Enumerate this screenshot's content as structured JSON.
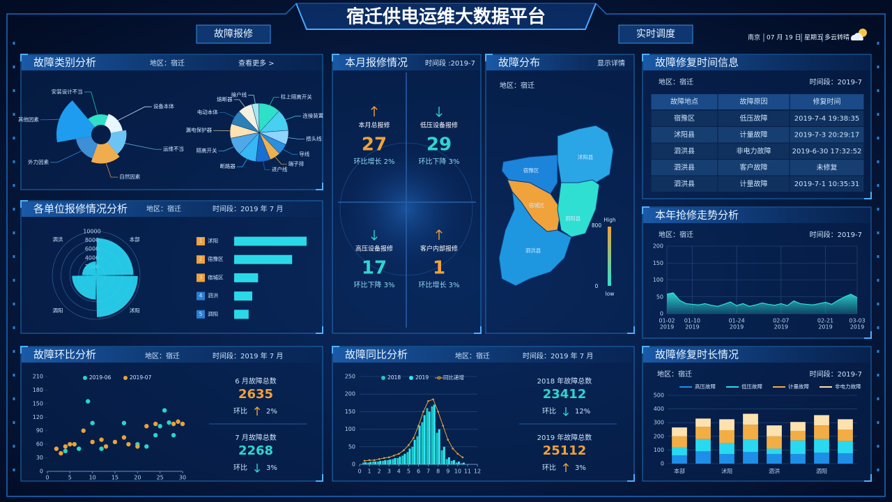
{
  "header": {
    "title": "宿迁供电运维大数据平台",
    "left_button": "故障报修",
    "right_button": "实时调度",
    "city": "南京",
    "date": "07 月 19 日",
    "weekday": "星期五",
    "weather": "多云转晴"
  },
  "fault_category": {
    "title": "故障类别分析",
    "region": "地区：宿迁",
    "more": "查看更多 >"
  },
  "monthly": {
    "title": "本月报修情况",
    "period": "时间段 :2019-7",
    "stats": [
      {
        "label": "本月总报修",
        "value": 27,
        "change": "环比增长 2%",
        "trend": "up"
      },
      {
        "label": "低压设备报修",
        "value": 29,
        "change": "环比下降 3%",
        "trend": "down"
      },
      {
        "label": "高压设备报修",
        "value": 17,
        "change": "环比下降 3%",
        "trend": "down"
      },
      {
        "label": "客户内部报修",
        "value": 1,
        "change": "环比增长 3%",
        "trend": "up"
      }
    ]
  },
  "distribution": {
    "title": "故障分布",
    "detail": "显示详情",
    "region": "地区：宿迁",
    "areas": [
      {
        "name": "沭阳县",
        "color": "#2aa6e6"
      },
      {
        "name": "宿豫区",
        "color": "#1d84dc"
      },
      {
        "name": "宿城区",
        "color": "#f0a23b"
      },
      {
        "name": "泗阳县",
        "color": "#2fe0d2"
      },
      {
        "name": "泗洪县",
        "color": "#1e97e0"
      }
    ],
    "legend": {
      "high": "High",
      "low": "low",
      "max": 800,
      "min": 0
    }
  },
  "repair_time": {
    "title": "故障修复时间信息",
    "region": "地区：宿迁",
    "period": "时间段：2019-7",
    "highlight_row": 3,
    "table": {
      "header": [
        "故障地点",
        "故障原因",
        "修复时间"
      ],
      "rows": [
        [
          "宿豫区",
          "低压故障",
          "2019-7-4 19:38:35"
        ],
        [
          "沭阳县",
          "计量故障",
          "2019-7-3 20:29:17"
        ],
        [
          "泗洪县",
          "非电力故障",
          "2019-6-30 17:32:52"
        ],
        [
          "泗洪县",
          "客户故障",
          "未修复"
        ],
        [
          "泗洪县",
          "计量故障",
          "2019-7-1 10:35:31"
        ]
      ]
    }
  },
  "unit_repair": {
    "title": "各单位报修情况分析",
    "region": "地区：宿迁",
    "period": "时间段：2019 年 7 月"
  },
  "trend": {
    "title": "本年抢修走势分析",
    "region": "地区：宿迁",
    "period": "时间段：2019-7"
  },
  "mom": {
    "title": "故障环比分析",
    "region": "地区：宿迁",
    "period": "时间段：2019 年 7 月",
    "summary": [
      {
        "label": "6 月故障总数",
        "value": 2635,
        "change_label": "环比",
        "change": "2%",
        "trend": "up"
      },
      {
        "label": "7 月故障总数",
        "value": 2268,
        "change_label": "环比",
        "change": "3%",
        "trend": "down"
      }
    ]
  },
  "yoy": {
    "title": "故障同比分析",
    "region": "地区：宿迁",
    "period": "时间段：2019 年 7 月",
    "summary": [
      {
        "label": "2018 年故障总数",
        "value": 23412,
        "change_label": "环比",
        "change": "12%",
        "trend": "down"
      },
      {
        "label": "2019 年故障总数",
        "value": 25112,
        "change_label": "环比",
        "change": "3%",
        "trend": "up"
      }
    ]
  },
  "repair_duration": {
    "title": "故障修复时长情况",
    "region": "地区：宿迁",
    "period": "时间段：2019-7"
  },
  "chart_data": [
    {
      "type": "rose",
      "categories": [
        "其他因素",
        "安装设计不当",
        "设备本体",
        "运维不当",
        "自然因素",
        "外力因素"
      ],
      "values": [
        100,
        30,
        35,
        45,
        55,
        45
      ],
      "colors": [
        "#1e9cf0",
        "#2fe0c8",
        "#e8f6ff",
        "#6cc4f5",
        "#f0ad4e",
        "#3d8fd6"
      ]
    },
    {
      "type": "pie",
      "categories": [
        "接户线",
        "柱上隔离开关",
        "连接装置",
        "搭头线",
        "导线",
        "端子排",
        "进户线",
        "断路器",
        "隔离开关",
        "漏电保护器",
        "电动本体",
        "熔断器"
      ],
      "values": [
        4,
        12,
        12,
        8,
        6,
        6,
        8,
        10,
        10,
        8,
        8,
        8
      ],
      "colors": [
        "#9fe8f0",
        "#2fe0c8",
        "#48d0f0",
        "#8fd4ff",
        "#2a8fe0",
        "#f0b04e",
        "#1a6fd0",
        "#36b8f5",
        "#4fa8e8",
        "#ffe2b0",
        "#2c7fb8",
        "#f6f0e0"
      ]
    },
    {
      "type": "polar_bar",
      "categories": [
        "本部",
        "沭阳",
        "泗阳",
        "泗洪"
      ],
      "values": [
        8500,
        9500,
        5500,
        3200
      ],
      "color": "#2ad9f5",
      "rlim": [
        0,
        10000
      ],
      "rticks": [
        2000,
        4000,
        6000,
        8000,
        10000
      ]
    },
    {
      "type": "hbar",
      "ranks": [
        1,
        2,
        3,
        4,
        5
      ],
      "categories": [
        "沭阳",
        "宿豫区",
        "宿城区",
        "泗洪",
        "泗阳"
      ],
      "values": [
        100,
        80,
        33,
        25,
        20
      ],
      "xlim": [
        0,
        100
      ],
      "color": "#2ad9e8",
      "highlight_top": 3
    },
    {
      "type": "area",
      "x": [
        "2019-01-02",
        "2019-01-04",
        "2019-01-06",
        "2019-01-08",
        "2019-01-10",
        "2019-01-12",
        "2019-01-14",
        "2019-01-16",
        "2019-01-18",
        "2019-01-20",
        "2019-01-22",
        "2019-01-24",
        "2019-01-26",
        "2019-01-28",
        "2019-01-30",
        "2019-02-01",
        "2019-02-03",
        "2019-02-05",
        "2019-02-07",
        "2019-02-09",
        "2019-02-11",
        "2019-02-13",
        "2019-02-15",
        "2019-02-17",
        "2019-02-19",
        "2019-02-21",
        "2019-02-23",
        "2019-02-25",
        "2019-02-27",
        "2019-03-01",
        "2019-03-03"
      ],
      "values": [
        58,
        62,
        40,
        30,
        28,
        26,
        30,
        25,
        22,
        28,
        35,
        24,
        30,
        22,
        26,
        32,
        28,
        25,
        30,
        24,
        38,
        30,
        28,
        26,
        30,
        34,
        28,
        40,
        50,
        58,
        48
      ],
      "color": "#2fe0d8",
      "ylim": [
        0,
        200
      ],
      "yticks": [
        0,
        50,
        100,
        150,
        200
      ],
      "grid": true,
      "xticks": [
        {
          "value": "2019-01-02",
          "label": "01-02",
          "sublabel": "2019"
        },
        {
          "value": "2019-01-10",
          "label": "01-10",
          "sublabel": "2019"
        },
        {
          "value": "2019-01-24",
          "label": "01-24",
          "sublabel": "2019"
        },
        {
          "value": "2019-02-07",
          "label": "02-07",
          "sublabel": "2019"
        },
        {
          "value": "2019-02-21",
          "label": "02-21",
          "sublabel": "2019"
        },
        {
          "value": "2019-03-03",
          "label": "03-03",
          "sublabel": "2019"
        }
      ]
    },
    {
      "type": "scatter",
      "xlim": [
        0,
        30
      ],
      "xticks": [
        0,
        5,
        10,
        15,
        20,
        25,
        30
      ],
      "ylim": [
        0,
        210
      ],
      "yticks": [
        0,
        30,
        60,
        90,
        120,
        150,
        180,
        210
      ],
      "series": [
        {
          "name": "2019-06",
          "color": "#2ad4c8",
          "x": [
            4,
            7,
            9,
            10,
            12,
            17,
            20,
            22,
            24,
            25,
            26,
            27,
            28
          ],
          "values": [
            45,
            50,
            155,
            107,
            50,
            107,
            60,
            55,
            80,
            100,
            135,
            108,
            80
          ]
        },
        {
          "name": "2019-07",
          "color": "#e8a33b",
          "x": [
            2,
            3,
            4,
            5,
            6,
            8,
            10,
            12,
            13,
            15,
            17,
            18,
            20,
            22,
            24,
            28,
            29,
            30
          ],
          "values": [
            50,
            40,
            55,
            60,
            60,
            90,
            65,
            70,
            55,
            65,
            75,
            60,
            55,
            100,
            105,
            105,
            110,
            105
          ]
        }
      ]
    },
    {
      "type": "bar_line",
      "xlim": [
        0,
        12
      ],
      "xticks": [
        0,
        1,
        2,
        3,
        4,
        5,
        6,
        7,
        8,
        9,
        10,
        11,
        12
      ],
      "ylim": [
        0,
        250
      ],
      "yticks": [
        0,
        50,
        100,
        150,
        200,
        250
      ],
      "grid": true,
      "x": [
        0.5,
        1,
        1.5,
        2,
        2.5,
        3,
        3.5,
        4,
        4.5,
        5,
        5.5,
        6,
        6.5,
        7,
        7.5,
        8,
        8.5,
        9,
        9.5,
        10,
        10.5
      ],
      "series": [
        {
          "name": "2018",
          "kind": "bar",
          "color": "#1fc8c0",
          "values": [
            5,
            5,
            8,
            8,
            10,
            12,
            15,
            18,
            25,
            35,
            50,
            80,
            120,
            160,
            165,
            90,
            40,
            15,
            10,
            5,
            3
          ]
        },
        {
          "name": "2019",
          "kind": "bar",
          "color": "#2ae8f5",
          "values": [
            6,
            7,
            8,
            10,
            12,
            14,
            18,
            22,
            30,
            45,
            70,
            110,
            140,
            150,
            170,
            100,
            50,
            20,
            12,
            8,
            5
          ]
        },
        {
          "name": "同比递增",
          "kind": "line",
          "color": "#e8a33b",
          "values": [
            10,
            12,
            12,
            15,
            18,
            20,
            25,
            30,
            40,
            55,
            75,
            110,
            150,
            180,
            185,
            150,
            110,
            70,
            45,
            30,
            20
          ]
        }
      ]
    },
    {
      "type": "stacked_bar",
      "categories": [
        "本部",
        null,
        "沭阳",
        null,
        "泗洪",
        null,
        "泗阳",
        null
      ],
      "ylim": [
        0,
        500
      ],
      "yticks": [
        0,
        100,
        200,
        300,
        400,
        500
      ],
      "grid": true,
      "series": [
        {
          "name": "高压故障",
          "color": "#1e8fe8",
          "values": [
            60,
            90,
            70,
            85,
            70,
            70,
            80,
            75
          ]
        },
        {
          "name": "低压故障",
          "color": "#2ad9f0",
          "values": [
            60,
            90,
            80,
            90,
            40,
            100,
            100,
            90
          ]
        },
        {
          "name": "计量故障",
          "color": "#f2ae45",
          "values": [
            80,
            90,
            95,
            110,
            90,
            70,
            100,
            85
          ]
        },
        {
          "name": "非电力故障",
          "color": "#fde2b0",
          "values": [
            65,
            60,
            80,
            80,
            80,
            65,
            75,
            75
          ]
        }
      ]
    }
  ]
}
